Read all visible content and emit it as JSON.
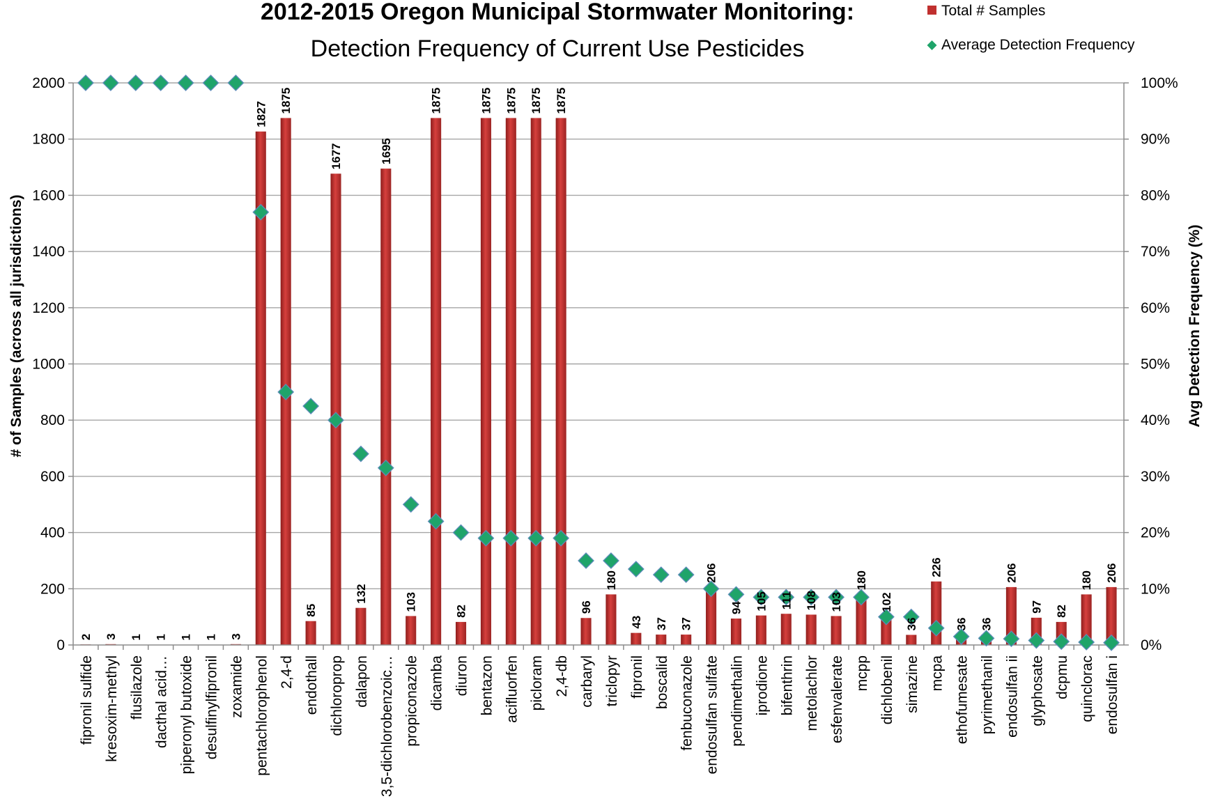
{
  "chart_data": {
    "type": "bar",
    "title": "2012-2015 Oregon Municipal Stormwater Monitoring:",
    "subtitle": "Detection Frequency of Current Use Pesticides",
    "ylabel": "# of Samples (across all jurisdictions)",
    "y2label": "Avg Detection Frequency (%)",
    "ylim": [
      0,
      2000
    ],
    "y2lim": [
      0,
      100
    ],
    "yticks": [
      "0",
      "200",
      "400",
      "600",
      "800",
      "1000",
      "1200",
      "1400",
      "1600",
      "1800",
      "2000"
    ],
    "y2ticks": [
      "0%",
      "10%",
      "20%",
      "30%",
      "40%",
      "50%",
      "60%",
      "70%",
      "80%",
      "90%",
      "100%"
    ],
    "grid": true,
    "legend_placement": "top-right",
    "categories": [
      "fipronil sulfide",
      "kresoxim-methyl",
      "flusilazole",
      "dacthal acid…",
      "piperonyl butoxide",
      "desulfinylfipronil",
      "zoxamide",
      "pentachlorophenol",
      "2,4-d",
      "endothall",
      "dichloroprop",
      "dalapon",
      "3,5-dichlorobenzoic…",
      "propiconazole",
      "dicamba",
      "diuron",
      "bentazon",
      "acifluorfen",
      "picloram",
      "2,4-db",
      "carbaryl",
      "triclopyr",
      "fipronil",
      "boscalid",
      "fenbuconazole",
      "endosulfan sulfate",
      "pendimethalin",
      "iprodione",
      "bifenthrin",
      "metolachlor",
      "esfenvalerate",
      "mcpp",
      "dichlobenil",
      "simazine",
      "mcpa",
      "ethofumesate",
      "pyrimethanil",
      "endosulfan ii",
      "glyphosate",
      "dcpmu",
      "quinclorac",
      "endosulfan i"
    ],
    "series": [
      {
        "name": "Total # Samples",
        "kind": "bar",
        "axis": "left",
        "color": "#c0302f",
        "values": [
          2,
          3,
          1,
          1,
          1,
          1,
          3,
          1827,
          1875,
          85,
          1677,
          132,
          1695,
          103,
          1875,
          82,
          1875,
          1875,
          1875,
          1875,
          96,
          180,
          43,
          37,
          37,
          206,
          94,
          105,
          111,
          108,
          103,
          180,
          102,
          36,
          226,
          36,
          36,
          206,
          97,
          82,
          180,
          206
        ]
      },
      {
        "name": "Average Detection Frequency",
        "kind": "marker",
        "axis": "right",
        "color": "#1fa46a",
        "values": [
          100,
          100,
          100,
          100,
          100,
          100,
          100,
          77,
          45,
          42.5,
          40,
          34,
          31.5,
          25,
          22,
          20,
          19,
          19,
          19,
          19,
          15,
          15,
          13.5,
          12.5,
          12.5,
          10,
          9,
          8.5,
          8.5,
          8.5,
          8.5,
          8.5,
          5,
          5,
          3,
          1.5,
          1.2,
          1.1,
          0.8,
          0.6,
          0.5,
          0.4
        ]
      }
    ]
  }
}
